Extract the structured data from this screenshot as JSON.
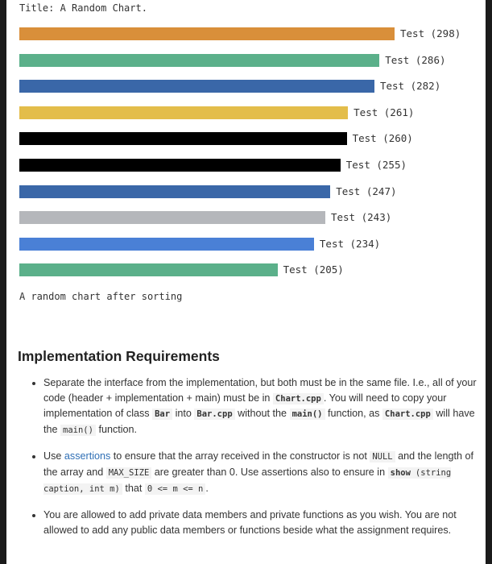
{
  "chart_data": {
    "type": "bar",
    "orientation": "horizontal",
    "title": "Title: A Random Chart.",
    "caption": "A random chart after sorting",
    "categories": [
      "Test",
      "Test",
      "Test",
      "Test",
      "Test",
      "Test",
      "Test",
      "Test",
      "Test",
      "Test"
    ],
    "values": [
      298,
      286,
      282,
      261,
      260,
      255,
      247,
      243,
      234,
      205
    ],
    "colors": [
      "#d98f3a",
      "#5bb08a",
      "#3a67a8",
      "#e3bd4a",
      "#000000",
      "#000000",
      "#3a67a8",
      "#b5b7bb",
      "#4a80d6",
      "#5bb08a"
    ],
    "grid": false
  },
  "section": {
    "heading": "Implementation Requirements",
    "items": [
      {
        "parts": [
          {
            "t": "text",
            "v": "Separate the interface from the implementation, but both must be in the same file. I.e., all of your code (header + implementation + main) must be in "
          },
          {
            "t": "codeb",
            "v": "Chart.cpp"
          },
          {
            "t": "text",
            "v": ". You will need to copy your implementation of class "
          },
          {
            "t": "codeb",
            "v": "Bar"
          },
          {
            "t": "text",
            "v": " into "
          },
          {
            "t": "codeb",
            "v": "Bar.cpp"
          },
          {
            "t": "text",
            "v": " without the "
          },
          {
            "t": "codeb",
            "v": "main()"
          },
          {
            "t": "text",
            "v": " function, as "
          },
          {
            "t": "codeb",
            "v": "Chart.cpp"
          },
          {
            "t": "text",
            "v": " will have the "
          },
          {
            "t": "code",
            "v": "main()"
          },
          {
            "t": "text",
            "v": " function."
          }
        ]
      },
      {
        "parts": [
          {
            "t": "text",
            "v": "Use "
          },
          {
            "t": "link",
            "v": "assertions"
          },
          {
            "t": "text",
            "v": " to ensure that the array received in the constructor is not "
          },
          {
            "t": "code",
            "v": "NULL"
          },
          {
            "t": "text",
            "v": " and the length of the array and "
          },
          {
            "t": "code",
            "v": "MAX_SIZE"
          },
          {
            "t": "text",
            "v": " are greater than 0. Use assertions also to ensure in "
          },
          {
            "t": "codeb",
            "v": "show"
          },
          {
            "t": "code",
            "v": "(string caption, int m)"
          },
          {
            "t": "text",
            "v": " that "
          },
          {
            "t": "code",
            "v": "0 <= m <= n"
          },
          {
            "t": "text",
            "v": "."
          }
        ]
      },
      {
        "parts": [
          {
            "t": "text",
            "v": "You are allowed to add private data members and private functions as you wish. You are not allowed to add any public data members or functions beside what the assignment requires."
          }
        ]
      }
    ]
  }
}
